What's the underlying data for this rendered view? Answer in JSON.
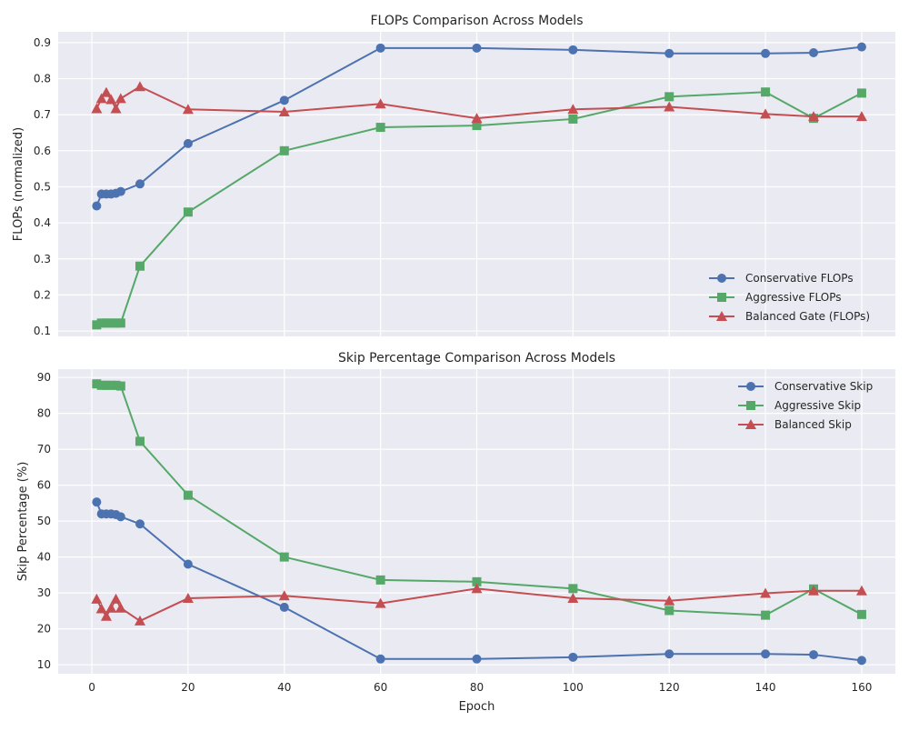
{
  "chart_data": [
    {
      "type": "line",
      "title": "FLOPs Comparison Across Models",
      "xlabel": "",
      "ylabel": "FLOPs (normalized)",
      "x": [
        1,
        2,
        3,
        4,
        5,
        6,
        10,
        20,
        40,
        60,
        80,
        100,
        120,
        140,
        150,
        160
      ],
      "xlim": [
        -7,
        167
      ],
      "ylim": [
        0.085,
        0.93
      ],
      "xticks": [
        0,
        20,
        40,
        60,
        80,
        100,
        120,
        140,
        160
      ],
      "yticks": [
        0.1,
        0.2,
        0.3,
        0.4,
        0.5,
        0.6,
        0.7,
        0.8,
        0.9
      ],
      "ytick_labels": [
        "0.1",
        "0.2",
        "0.3",
        "0.4",
        "0.5",
        "0.6",
        "0.7",
        "0.8",
        "0.9"
      ],
      "grid": true,
      "legend": "lower-right",
      "series": [
        {
          "name": "Conservative FLOPs",
          "color": "#4c72b0",
          "marker": "circle",
          "values": [
            0.447,
            0.48,
            0.48,
            0.48,
            0.482,
            0.487,
            0.508,
            0.62,
            0.74,
            0.885,
            0.885,
            0.88,
            0.87,
            0.87,
            0.872,
            0.888
          ]
        },
        {
          "name": "Aggressive FLOPs",
          "color": "#55a868",
          "marker": "square",
          "values": [
            0.117,
            0.122,
            0.122,
            0.122,
            0.122,
            0.122,
            0.28,
            0.43,
            0.6,
            0.665,
            0.67,
            0.688,
            0.75,
            0.763,
            0.69,
            0.76
          ]
        },
        {
          "name": "Balanced Gate (FLOPs)",
          "color": "#c44e52",
          "marker": "triangle",
          "values": [
            0.717,
            0.745,
            0.762,
            0.742,
            0.717,
            0.745,
            0.778,
            0.715,
            0.708,
            0.73,
            0.69,
            0.715,
            0.722,
            0.702,
            0.695,
            0.695
          ]
        }
      ]
    },
    {
      "type": "line",
      "title": "Skip Percentage Comparison Across Models",
      "xlabel": "Epoch",
      "ylabel": "Skip Percentage (%)",
      "x": [
        1,
        2,
        3,
        4,
        5,
        6,
        10,
        20,
        40,
        60,
        80,
        100,
        120,
        140,
        150,
        160
      ],
      "xlim": [
        -7,
        167
      ],
      "ylim": [
        7.5,
        92.3
      ],
      "xticks": [
        0,
        20,
        40,
        60,
        80,
        100,
        120,
        140,
        160
      ],
      "yticks": [
        10,
        20,
        30,
        40,
        50,
        60,
        70,
        80,
        90
      ],
      "ytick_labels": [
        "10",
        "20",
        "30",
        "40",
        "50",
        "60",
        "70",
        "80",
        "90"
      ],
      "grid": true,
      "legend": "upper-right",
      "series": [
        {
          "name": "Conservative Skip",
          "color": "#4c72b0",
          "marker": "circle",
          "values": [
            55.3,
            52,
            52,
            52,
            51.8,
            51.2,
            49.2,
            38,
            26,
            11.6,
            11.6,
            12.1,
            13,
            13,
            12.8,
            11.2
          ]
        },
        {
          "name": "Aggressive Skip",
          "color": "#55a868",
          "marker": "square",
          "values": [
            88.2,
            87.8,
            87.8,
            87.8,
            87.8,
            87.6,
            72.2,
            57.2,
            40,
            33.6,
            33.1,
            31.2,
            25.1,
            23.8,
            31.1,
            24
          ]
        },
        {
          "name": "Balanced Skip",
          "color": "#c44e52",
          "marker": "triangle",
          "values": [
            28.3,
            25.6,
            23.5,
            25.8,
            28.3,
            25.8,
            22.2,
            28.5,
            29.2,
            27.1,
            31.2,
            28.5,
            27.8,
            29.9,
            30.6,
            30.6
          ]
        }
      ]
    }
  ]
}
